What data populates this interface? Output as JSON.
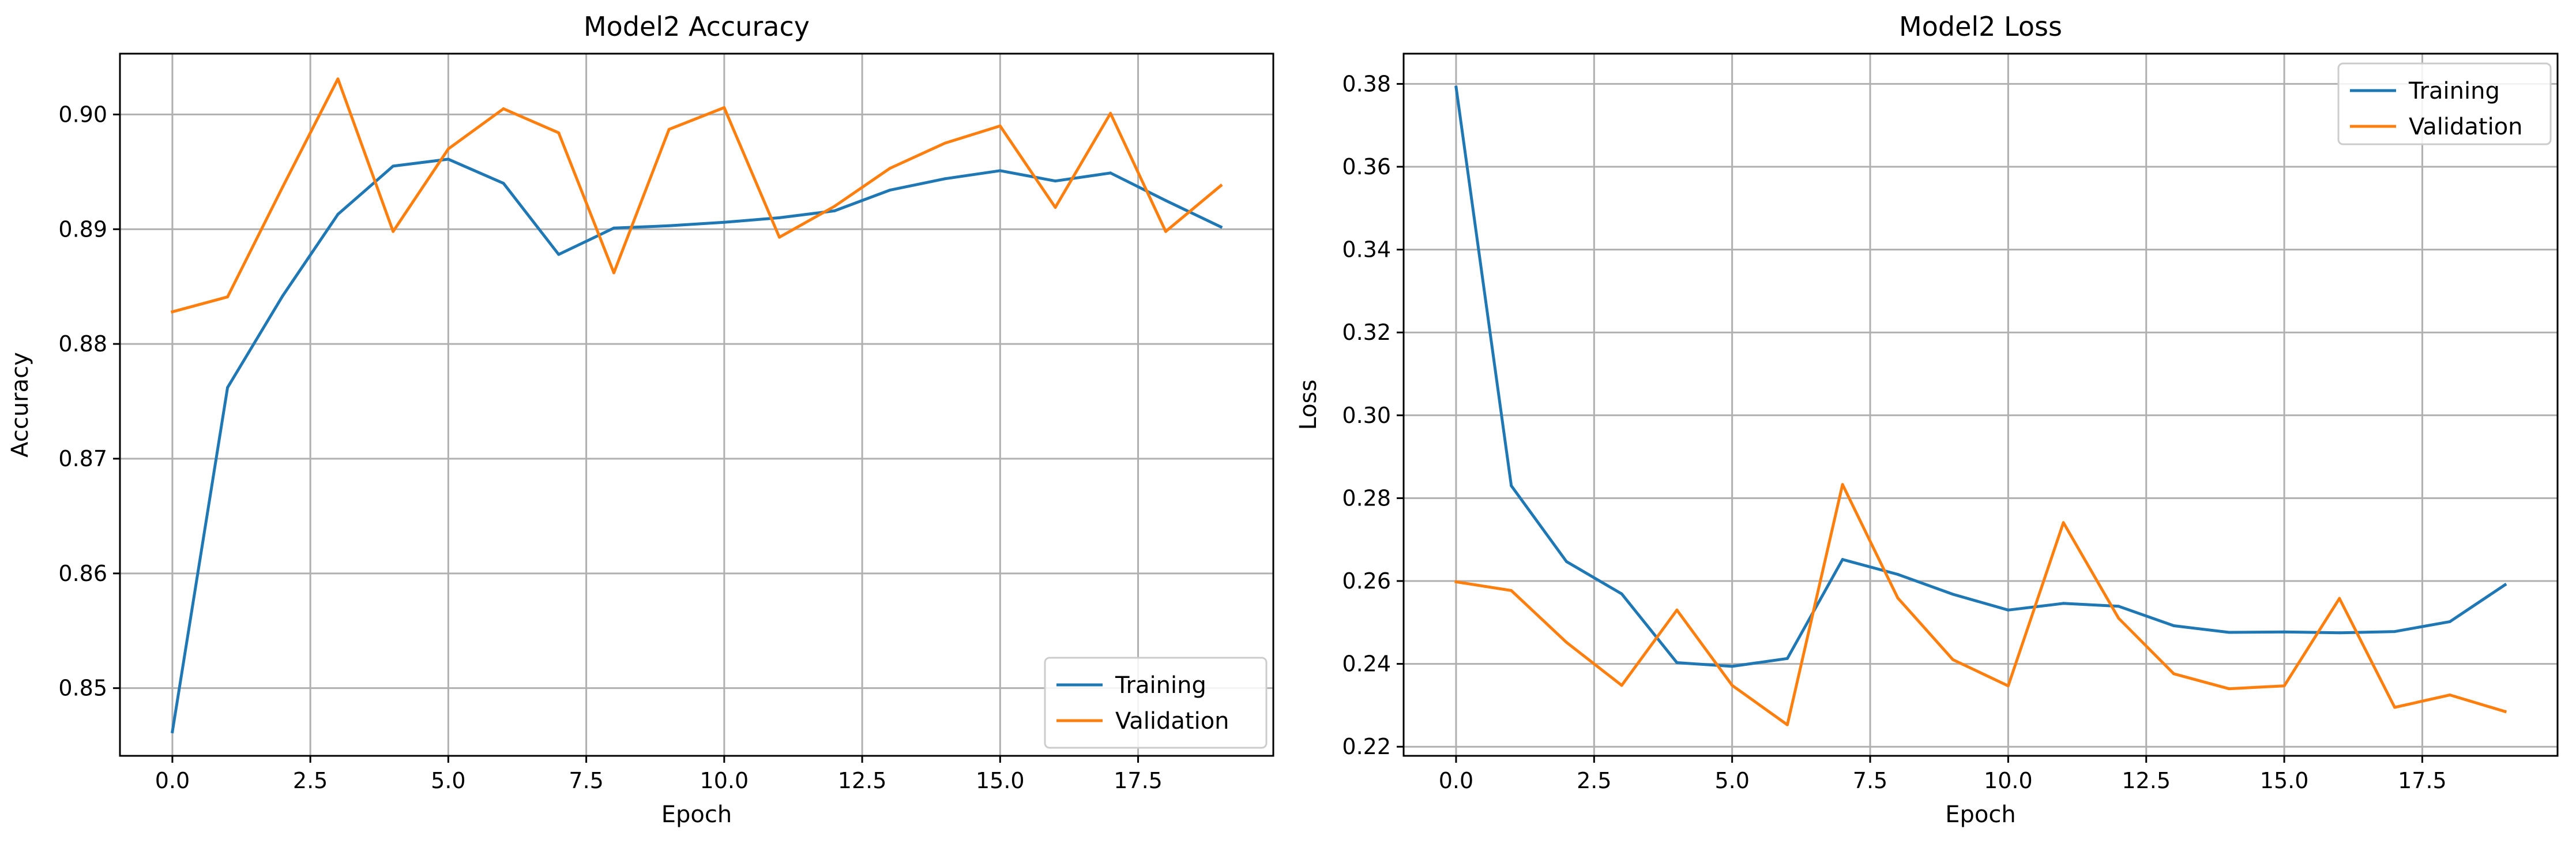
{
  "colors": {
    "training": "#1f77b4",
    "validation": "#ff7f0e"
  },
  "chart_data": [
    {
      "type": "line",
      "title": "Model2 Accuracy",
      "xlabel": "Epoch",
      "ylabel": "Accuracy",
      "xlim": [
        -0.95,
        19.95
      ],
      "ylim": [
        0.8441,
        0.9053
      ],
      "xticks": [
        0.0,
        2.5,
        5.0,
        7.5,
        10.0,
        12.5,
        15.0,
        17.5
      ],
      "xtick_labels": [
        "0.0",
        "2.5",
        "5.0",
        "7.5",
        "10.0",
        "12.5",
        "15.0",
        "17.5"
      ],
      "yticks": [
        0.85,
        0.86,
        0.87,
        0.88,
        0.89,
        0.9
      ],
      "ytick_labels": [
        "0.85",
        "0.86",
        "0.87",
        "0.88",
        "0.89",
        "0.90"
      ],
      "grid": true,
      "legend_position": "lower-right",
      "x": [
        0,
        1,
        2,
        3,
        4,
        5,
        6,
        7,
        8,
        9,
        10,
        11,
        12,
        13,
        14,
        15,
        16,
        17,
        18,
        19
      ],
      "series": [
        {
          "name": "Training",
          "color": "#1f77b4",
          "values": [
            0.8462,
            0.8762,
            0.8842,
            0.8913,
            0.8955,
            0.8961,
            0.894,
            0.8878,
            0.8901,
            0.8903,
            0.8906,
            0.891,
            0.8916,
            0.8934,
            0.8944,
            0.8951,
            0.8942,
            0.8949,
            0.8925,
            0.8902
          ]
        },
        {
          "name": "Validation",
          "color": "#ff7f0e",
          "values": [
            0.8828,
            0.8841,
            0.8937,
            0.9031,
            0.8898,
            0.897,
            0.9005,
            0.8984,
            0.8862,
            0.8987,
            0.9006,
            0.8893,
            0.892,
            0.8953,
            0.8975,
            0.899,
            0.8919,
            0.9001,
            0.8898,
            0.8938
          ]
        }
      ]
    },
    {
      "type": "line",
      "title": "Model2 Loss",
      "xlabel": "Epoch",
      "ylabel": "Loss",
      "xlim": [
        -0.95,
        19.95
      ],
      "ylim": [
        0.2178,
        0.3873
      ],
      "xticks": [
        0.0,
        2.5,
        5.0,
        7.5,
        10.0,
        12.5,
        15.0,
        17.5
      ],
      "xtick_labels": [
        "0.0",
        "2.5",
        "5.0",
        "7.5",
        "10.0",
        "12.5",
        "15.0",
        "17.5"
      ],
      "yticks": [
        0.22,
        0.24,
        0.26,
        0.28,
        0.3,
        0.32,
        0.34,
        0.36,
        0.38
      ],
      "ytick_labels": [
        "0.22",
        "0.24",
        "0.26",
        "0.28",
        "0.30",
        "0.32",
        "0.34",
        "0.36",
        "0.38"
      ],
      "grid": true,
      "legend_position": "upper-right",
      "x": [
        0,
        1,
        2,
        3,
        4,
        5,
        6,
        7,
        8,
        9,
        10,
        11,
        12,
        13,
        14,
        15,
        16,
        17,
        18,
        19
      ],
      "series": [
        {
          "name": "Training",
          "color": "#1f77b4",
          "values": [
            0.3792,
            0.283,
            0.2647,
            0.2569,
            0.2403,
            0.2394,
            0.2413,
            0.2652,
            0.2616,
            0.2568,
            0.253,
            0.2546,
            0.2539,
            0.2492,
            0.2476,
            0.2477,
            0.2475,
            0.2478,
            0.2502,
            0.2591
          ]
        },
        {
          "name": "Validation",
          "color": "#ff7f0e",
          "values": [
            0.2598,
            0.2577,
            0.2452,
            0.2348,
            0.253,
            0.2348,
            0.2253,
            0.2833,
            0.2559,
            0.241,
            0.2347,
            0.2741,
            0.251,
            0.2376,
            0.234,
            0.2347,
            0.2558,
            0.2295,
            0.2325,
            0.2285
          ]
        }
      ]
    }
  ]
}
